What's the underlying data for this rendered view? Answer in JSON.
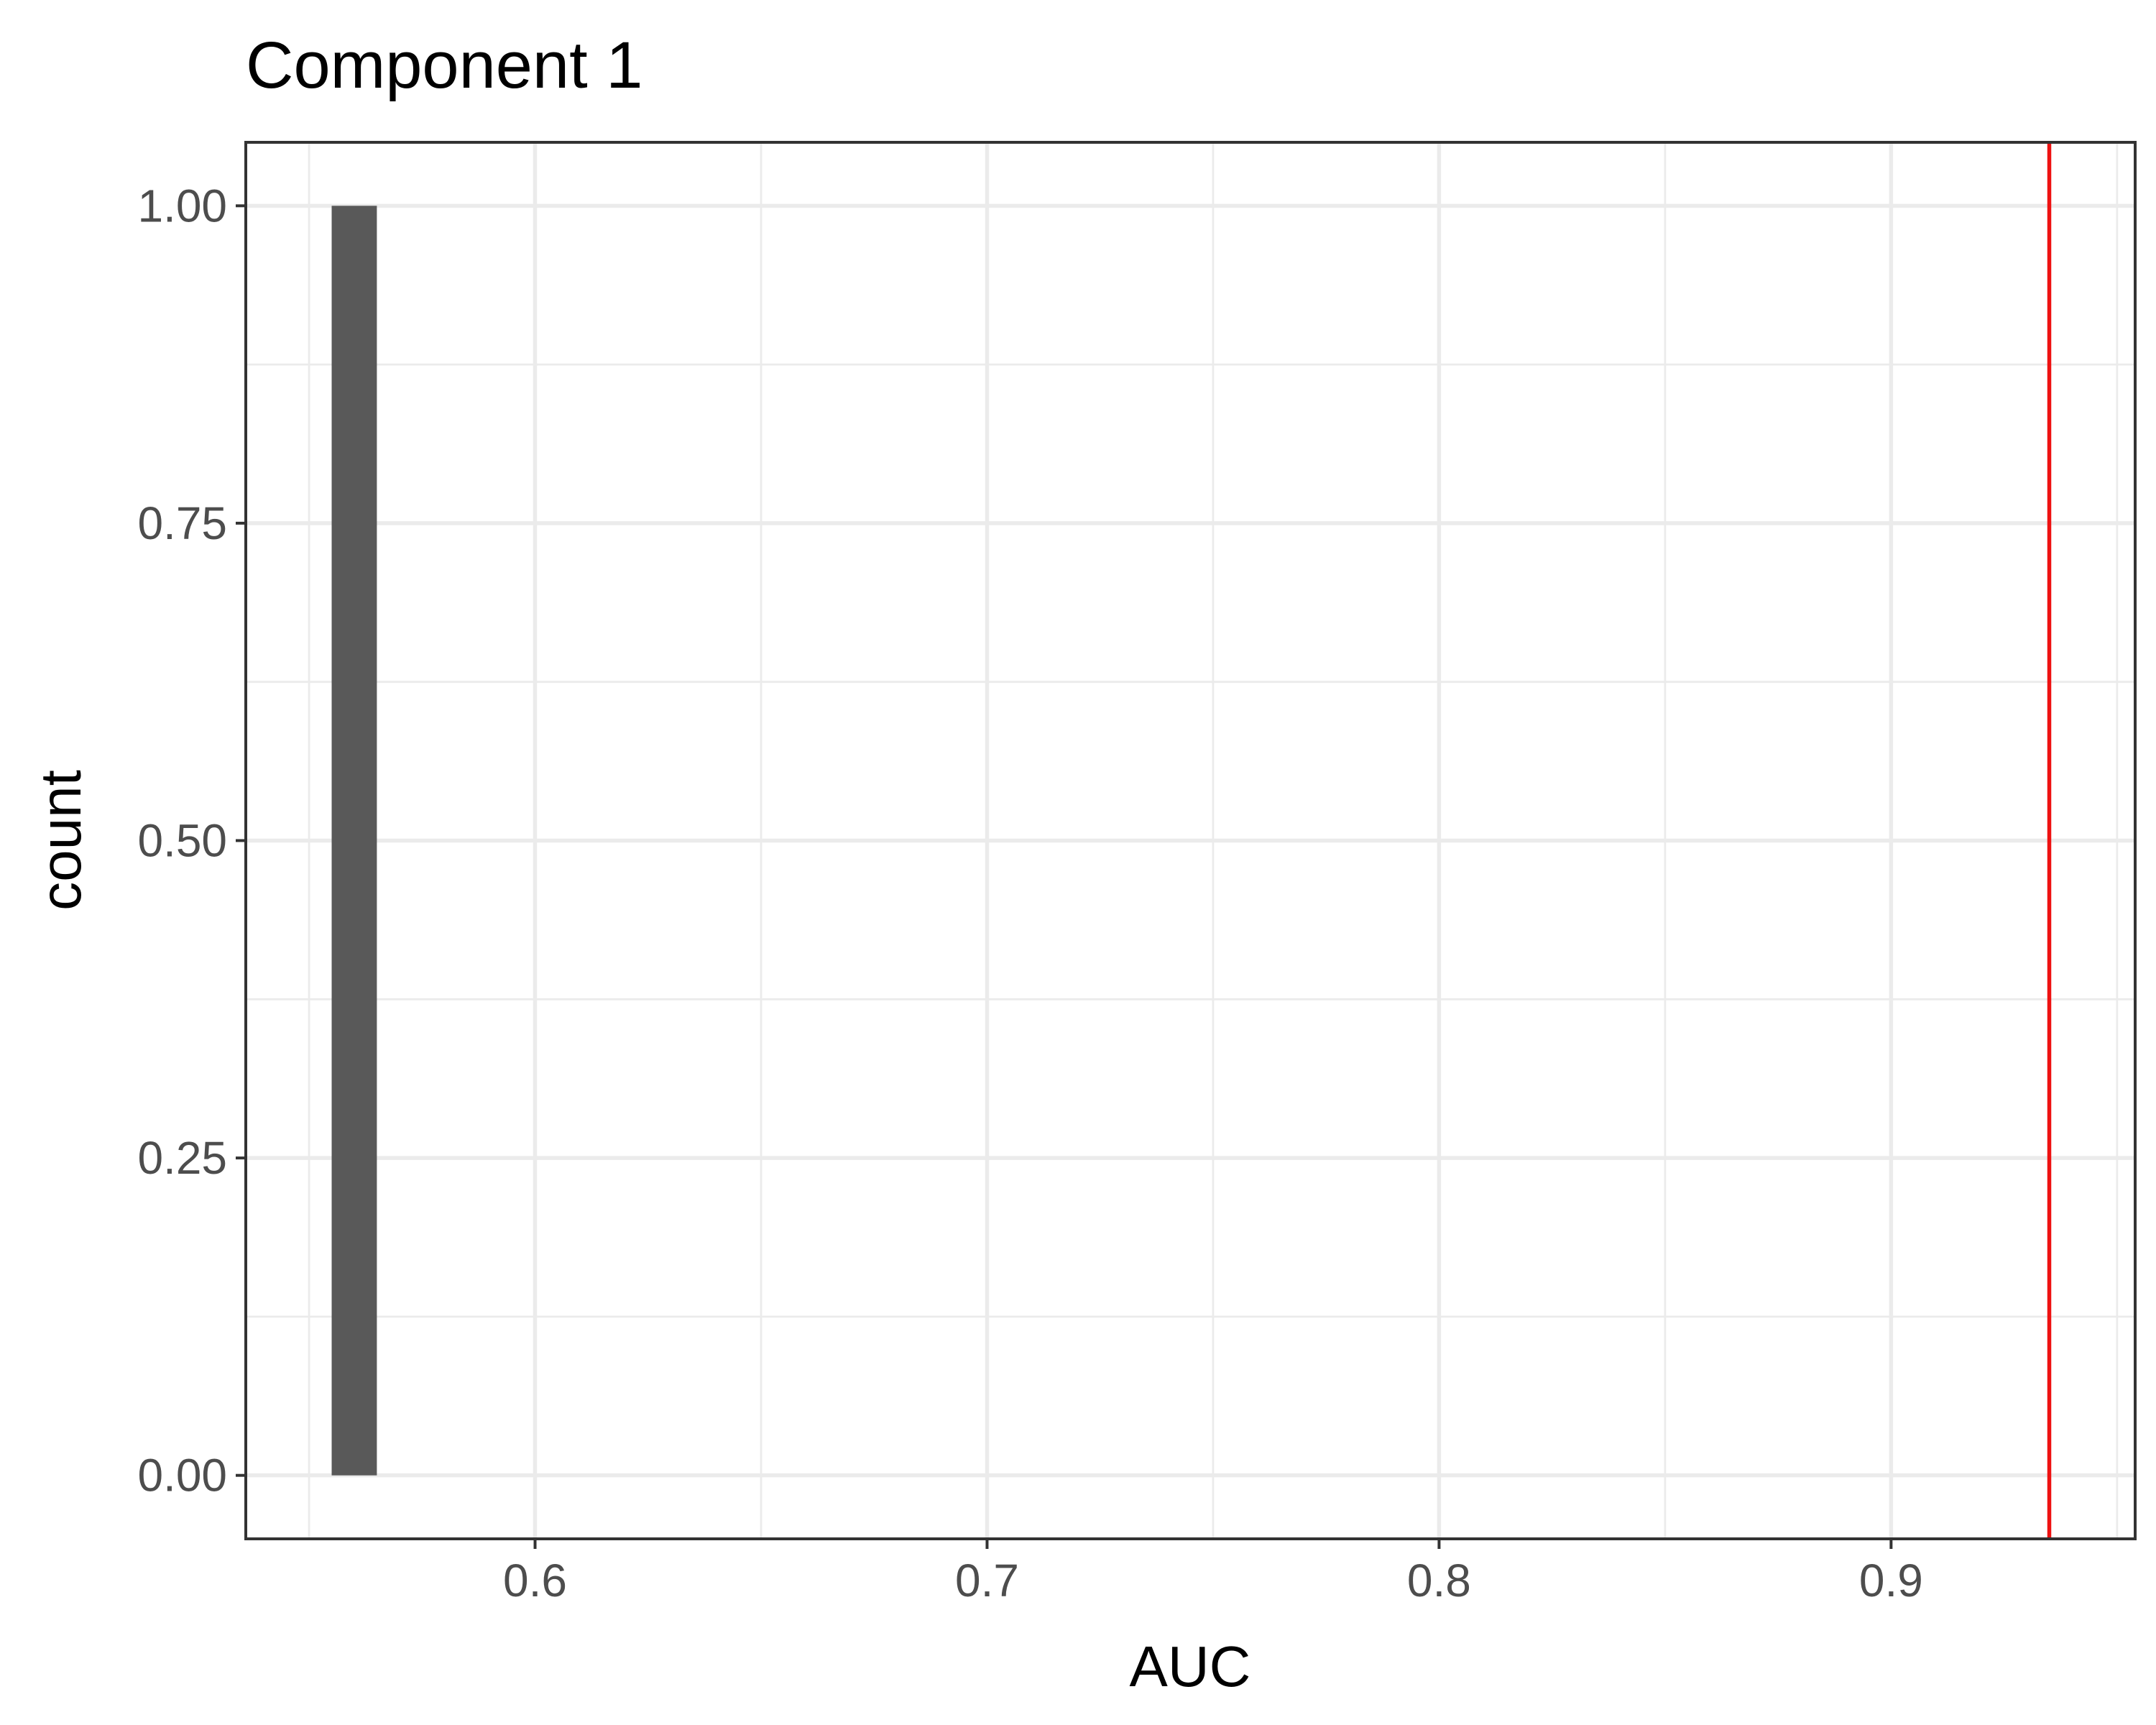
{
  "chart_data": {
    "type": "bar",
    "title": "Component 1",
    "xlabel": "AUC",
    "ylabel": "count",
    "xlim": [
      0.536,
      0.954
    ],
    "ylim": [
      -0.05,
      1.05
    ],
    "x_ticks": [
      0.6,
      0.7,
      0.8,
      0.9
    ],
    "x_tick_labels": [
      "0.6",
      "0.7",
      "0.8",
      "0.9"
    ],
    "x_minor_ticks": [
      0.55,
      0.65,
      0.75,
      0.85,
      0.95
    ],
    "y_ticks": [
      0,
      0.25,
      0.5,
      0.75,
      1
    ],
    "y_tick_labels": [
      "0.00",
      "0.25",
      "0.50",
      "0.75",
      "1.00"
    ],
    "y_minor_ticks": [
      0.125,
      0.375,
      0.625,
      0.875
    ],
    "bins": [
      {
        "x_start": 0.555,
        "x_end": 0.565,
        "count": 1
      }
    ],
    "reference_line": {
      "x": 0.935,
      "color": "#ee1111"
    },
    "bar_color": "#595959",
    "grid": true,
    "legend": "none"
  }
}
